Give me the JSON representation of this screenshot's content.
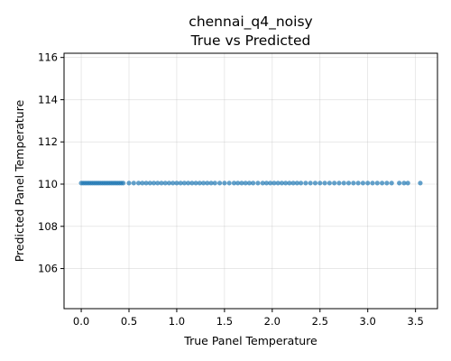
{
  "chart_data": {
    "type": "scatter",
    "title": "chennai_q4_noisy",
    "subtitle": "True vs Predicted",
    "xlabel": "True Panel Temperature",
    "ylabel": "Predicted Panel Temperature",
    "xlim": [
      -0.18,
      3.73
    ],
    "ylim": [
      104.1,
      116.2
    ],
    "xticks": [
      0.0,
      0.5,
      1.0,
      1.5,
      2.0,
      2.5,
      3.0,
      3.5
    ],
    "xtick_labels": [
      "0.0",
      "0.5",
      "1.0",
      "1.5",
      "2.0",
      "2.5",
      "3.0",
      "3.5"
    ],
    "yticks": [
      106,
      108,
      110,
      112,
      114,
      116
    ],
    "ytick_labels": [
      "106",
      "108",
      "110",
      "112",
      "114",
      "116"
    ],
    "grid": true,
    "point_color": "#1f77b4",
    "x": [
      0.0,
      0.02,
      0.04,
      0.06,
      0.08,
      0.1,
      0.12,
      0.14,
      0.16,
      0.18,
      0.2,
      0.22,
      0.24,
      0.26,
      0.28,
      0.3,
      0.32,
      0.34,
      0.36,
      0.38,
      0.4,
      0.42,
      0.44,
      0.5,
      0.55,
      0.6,
      0.64,
      0.68,
      0.72,
      0.76,
      0.8,
      0.84,
      0.88,
      0.92,
      0.96,
      1.0,
      1.04,
      1.08,
      1.12,
      1.16,
      1.2,
      1.24,
      1.28,
      1.32,
      1.36,
      1.4,
      1.45,
      1.5,
      1.55,
      1.6,
      1.64,
      1.68,
      1.72,
      1.76,
      1.8,
      1.85,
      1.9,
      1.94,
      1.98,
      2.02,
      2.06,
      2.1,
      2.14,
      2.18,
      2.22,
      2.26,
      2.3,
      2.35,
      2.4,
      2.45,
      2.5,
      2.55,
      2.6,
      2.65,
      2.7,
      2.75,
      2.8,
      2.85,
      2.9,
      2.95,
      3.0,
      3.05,
      3.1,
      3.15,
      3.2,
      3.25,
      3.33,
      3.38,
      3.42,
      3.55
    ],
    "y": [
      110.05,
      110.05,
      110.05,
      110.05,
      110.05,
      110.05,
      110.05,
      110.05,
      110.05,
      110.05,
      110.05,
      110.05,
      110.05,
      110.05,
      110.05,
      110.05,
      110.05,
      110.05,
      110.05,
      110.05,
      110.05,
      110.05,
      110.05,
      110.05,
      110.05,
      110.05,
      110.05,
      110.05,
      110.05,
      110.05,
      110.05,
      110.05,
      110.05,
      110.05,
      110.05,
      110.05,
      110.05,
      110.05,
      110.05,
      110.05,
      110.05,
      110.05,
      110.05,
      110.05,
      110.05,
      110.05,
      110.05,
      110.05,
      110.05,
      110.05,
      110.05,
      110.05,
      110.05,
      110.05,
      110.05,
      110.05,
      110.05,
      110.05,
      110.05,
      110.05,
      110.05,
      110.05,
      110.05,
      110.05,
      110.05,
      110.05,
      110.05,
      110.05,
      110.05,
      110.05,
      110.05,
      110.05,
      110.05,
      110.05,
      110.05,
      110.05,
      110.05,
      110.05,
      110.05,
      110.05,
      110.05,
      110.05,
      110.05,
      110.05,
      110.05,
      110.05,
      110.05,
      110.05,
      110.05,
      110.05
    ]
  }
}
